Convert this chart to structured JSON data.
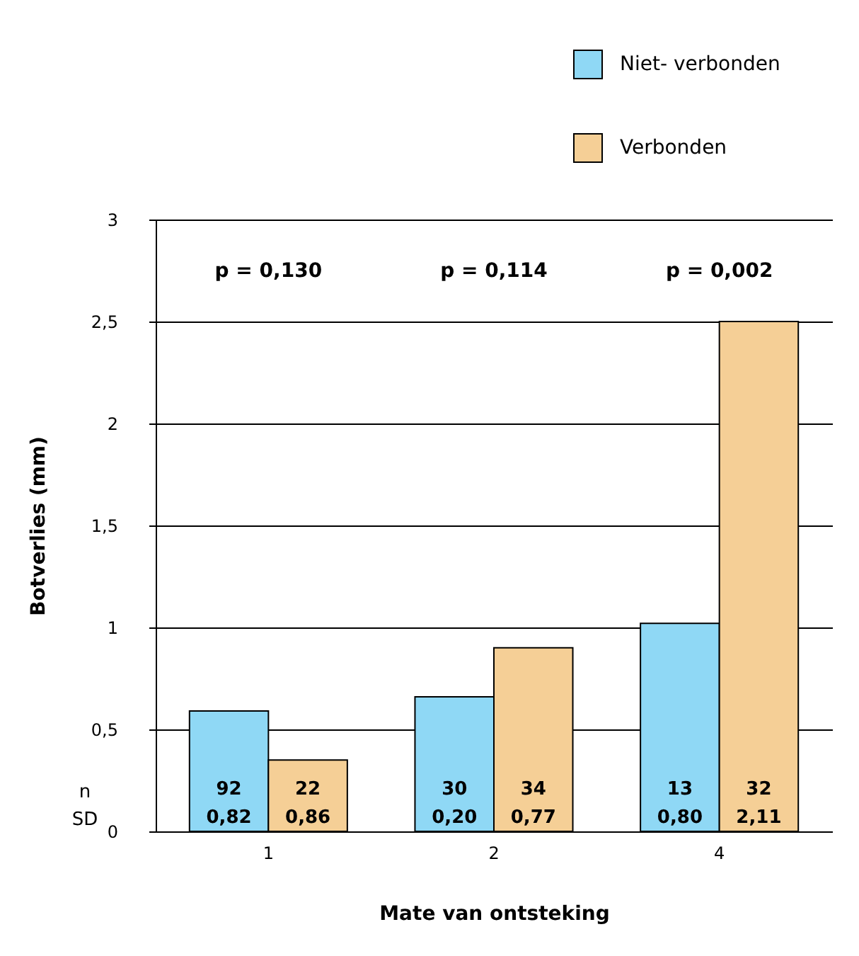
{
  "chart_data": {
    "type": "bar",
    "xlabel": "Mate van ontsteking",
    "ylabel": "Botverlies (mm)",
    "categories": [
      "1",
      "2",
      "4"
    ],
    "series": [
      {
        "name": "Niet- verbonden",
        "color": "#8fd8f5",
        "values": [
          0.59,
          0.66,
          1.02
        ]
      },
      {
        "name": "Verbonden",
        "color": "#f5cf96",
        "values": [
          0.35,
          0.9,
          2.5
        ]
      }
    ],
    "ylim": [
      0,
      3
    ],
    "yticks": [
      0,
      {
        "value": 0.5,
        "label": "0,5"
      },
      1,
      {
        "value": 1.5,
        "label": "1,5"
      },
      2,
      {
        "value": 2.5,
        "label": "2,5"
      },
      3
    ],
    "grid": "y",
    "legend": "top right",
    "annotations": [
      "p = 0,130",
      "p = 0,114",
      "p = 0,002",
      "n",
      "SD",
      "92",
      "0,82",
      "22",
      "0,86",
      "30",
      "0,20",
      "34",
      "0,77",
      "13",
      "0,80",
      "32",
      "2,11"
    ]
  }
}
